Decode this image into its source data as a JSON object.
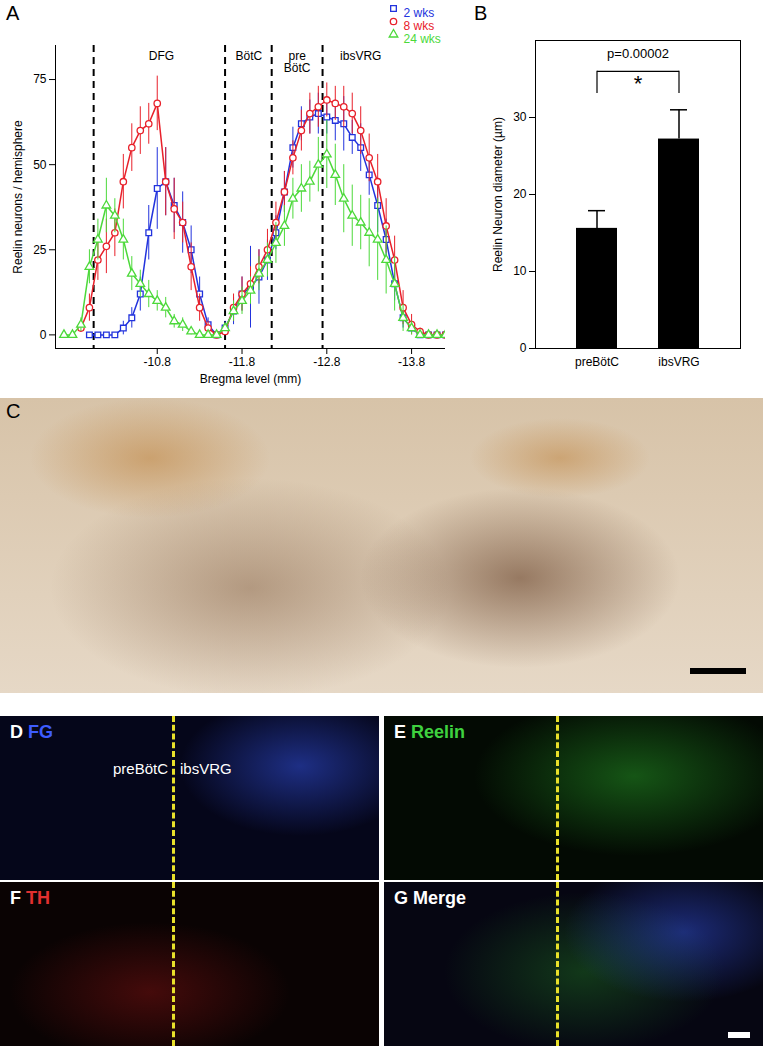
{
  "chart_data": [
    {
      "panel": "A",
      "type": "line",
      "x_label": "Bregma level (mm)",
      "y_label": "Reelin neurons / hemisphere",
      "x": [
        -9.7,
        -9.8,
        -9.9,
        -10.0,
        -10.1,
        -10.2,
        -10.3,
        -10.4,
        -10.5,
        -10.6,
        -10.7,
        -10.8,
        -10.9,
        -11.0,
        -11.1,
        -11.2,
        -11.3,
        -11.4,
        -11.5,
        -11.6,
        -11.7,
        -11.8,
        -11.9,
        -12.0,
        -12.1,
        -12.2,
        -12.3,
        -12.4,
        -12.5,
        -12.6,
        -12.7,
        -12.8,
        -12.9,
        -13.0,
        -13.1,
        -13.2,
        -13.3,
        -13.4,
        -13.5,
        -13.6,
        -13.7,
        -13.8,
        -13.9,
        -14.0,
        -14.1,
        -14.2
      ],
      "series": [
        {
          "name": "2 wks",
          "color": "#2233dd",
          "marker": "square",
          "values": [
            null,
            null,
            null,
            0,
            0,
            0,
            0,
            2,
            5,
            12,
            30,
            43,
            45,
            38,
            33,
            25,
            12,
            3,
            0,
            2,
            7,
            12,
            14,
            17,
            22,
            30,
            42,
            55,
            62,
            64,
            65,
            64,
            63,
            62,
            58,
            55,
            47,
            38,
            28,
            15,
            5,
            2,
            0,
            0,
            0,
            0
          ],
          "errors": [
            null,
            null,
            null,
            0,
            0,
            0,
            0,
            2,
            3,
            5,
            8,
            12,
            10,
            8,
            9,
            7,
            5,
            2,
            0,
            2,
            4,
            5,
            12,
            8,
            6,
            5,
            6,
            6,
            5,
            5,
            6,
            5,
            6,
            8,
            5,
            7,
            6,
            8,
            6,
            5,
            3,
            1,
            0,
            0,
            0,
            0
          ]
        },
        {
          "name": "8 wks",
          "color": "#e8202a",
          "marker": "circle",
          "values": [
            null,
            null,
            2,
            8,
            22,
            26,
            30,
            45,
            55,
            60,
            62,
            68,
            45,
            37,
            33,
            20,
            8,
            2,
            0,
            1,
            8,
            12,
            15,
            20,
            25,
            33,
            42,
            52,
            60,
            65,
            67,
            69,
            68,
            67,
            65,
            60,
            52,
            45,
            32,
            22,
            8,
            3,
            1,
            0,
            0,
            0
          ],
          "errors": [
            null,
            null,
            1,
            4,
            6,
            8,
            7,
            8,
            7,
            7,
            6,
            8,
            10,
            9,
            6,
            7,
            4,
            2,
            0,
            1,
            4,
            5,
            5,
            5,
            6,
            6,
            6,
            5,
            6,
            6,
            6,
            5,
            5,
            6,
            6,
            7,
            7,
            8,
            8,
            7,
            5,
            3,
            1,
            0,
            0,
            0
          ]
        },
        {
          "name": "24 wks",
          "color": "#4cd93a",
          "marker": "triangle",
          "values": [
            0,
            0,
            3,
            20,
            28,
            38,
            35,
            28,
            18,
            15,
            12,
            10,
            8,
            4,
            3,
            1,
            0,
            0,
            0,
            2,
            7,
            10,
            13,
            18,
            22,
            27,
            32,
            40,
            43,
            45,
            50,
            53,
            47,
            40,
            35,
            33,
            30,
            28,
            22,
            15,
            5,
            2,
            0,
            0,
            0,
            0
          ],
          "errors": [
            0,
            0,
            2,
            5,
            6,
            8,
            5,
            6,
            5,
            4,
            4,
            3,
            3,
            2,
            2,
            1,
            0,
            0,
            0,
            1,
            3,
            4,
            4,
            5,
            5,
            6,
            6,
            6,
            7,
            6,
            8,
            10,
            9,
            10,
            9,
            8,
            10,
            12,
            10,
            8,
            4,
            2,
            0,
            0,
            0,
            0
          ]
        }
      ],
      "xlim": [
        -9.6,
        -14.2
      ],
      "xticks": [
        -10.8,
        -11.8,
        -12.8,
        -13.8
      ],
      "ylim": [
        -4,
        85
      ],
      "yticks": [
        0,
        25,
        50,
        75
      ],
      "legend": "top-right",
      "dividers": [
        -10.05,
        -11.6,
        -12.15,
        -12.75
      ],
      "annotations": [
        {
          "x": -10.85,
          "text": "DFG"
        },
        {
          "x": -11.88,
          "text": "BötC"
        },
        {
          "x": -12.45,
          "text": "pre\nBötC"
        },
        {
          "x": -13.2,
          "text": "ibsVRG"
        }
      ]
    },
    {
      "panel": "B",
      "type": "bar",
      "y_label": "Reelin Neuron diameter (µm)",
      "categories": [
        "preBötC",
        "ibsVRG"
      ],
      "values": [
        15.6,
        27.2
      ],
      "errors": [
        2.3,
        3.8
      ],
      "color": "#000000",
      "ylim": [
        0,
        40
      ],
      "yticks": [
        0,
        10,
        20,
        30
      ],
      "annotations": [
        {
          "text": "p=0.00002"
        },
        {
          "text": "*"
        }
      ]
    }
  ],
  "image_panels": [
    {
      "panel": "C"
    },
    {
      "panel": "D",
      "title": "FG",
      "color": "#3d5cff",
      "regions": [
        "preBötC",
        "ibsVRG"
      ]
    },
    {
      "panel": "E",
      "title": "Reelin",
      "color": "#3fd13f"
    },
    {
      "panel": "F",
      "title": "TH",
      "color": "#e03030"
    },
    {
      "panel": "G",
      "title": "Merge",
      "color": "#ffffff"
    }
  ]
}
